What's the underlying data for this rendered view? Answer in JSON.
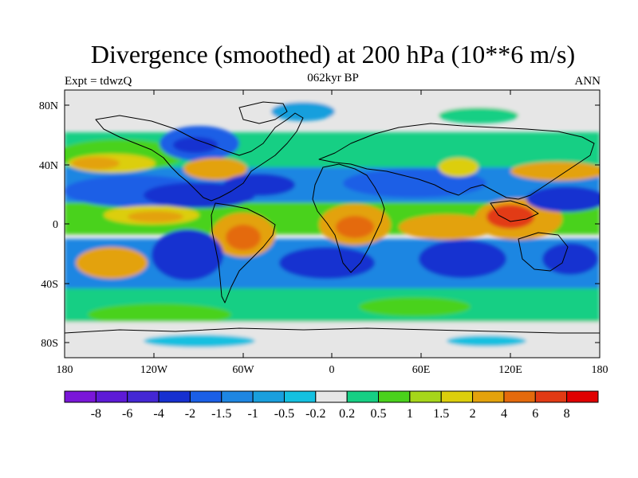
{
  "header": {
    "title": "Divergence (smoothed) at 200 hPa (10**6 m/s)",
    "subtitle": "062kyr BP",
    "left_label": "Expt = tdwzQ",
    "right_label": "ANN"
  },
  "map": {
    "projection": "cylindrical-equidistant",
    "lon_range": [
      -180,
      180
    ],
    "lat_range": [
      -90,
      90
    ],
    "y_ticks": [
      "80N",
      "40N",
      "0",
      "40S",
      "80S"
    ],
    "x_ticks": [
      "180",
      "120W",
      "60W",
      "0",
      "60E",
      "120E",
      "180"
    ],
    "land_outline_color": "#000000",
    "field_samples": [
      {
        "region": "Indonesia / Maritime Continent",
        "level": "6"
      },
      {
        "region": "Amazon / South America",
        "level": "4"
      },
      {
        "region": "Central Africa",
        "level": "4"
      },
      {
        "region": "Central Pacific (~10N)",
        "level": "-4"
      },
      {
        "region": "Subtropical South Atlantic",
        "level": "-4"
      },
      {
        "region": "Subtropical South Indian Ocean",
        "level": "-4"
      },
      {
        "region": "Subtropical South Pacific",
        "level": "-4"
      },
      {
        "region": "Antarctica",
        "level": "-0.2 to 0.2"
      }
    ]
  },
  "colorbar": {
    "labels": [
      "-8",
      "-6",
      "-4",
      "-2",
      "-1.5",
      "-1",
      "-0.5",
      "-0.2",
      "0.2",
      "0.5",
      "1",
      "1.5",
      "2",
      "4",
      "6",
      "8"
    ],
    "colors": [
      "#7a16d8",
      "#5d1ad6",
      "#4427d4",
      "#1630d0",
      "#1a5fe6",
      "#1e86e2",
      "#199fdd",
      "#14c0e0",
      "#e6e6e6",
      "#16cf84",
      "#4ad21c",
      "#a6d61a",
      "#dcce0c",
      "#e3a20c",
      "#e46a0c",
      "#e23a14",
      "#e00000"
    ]
  }
}
